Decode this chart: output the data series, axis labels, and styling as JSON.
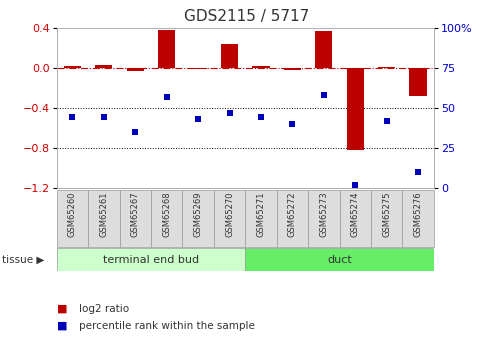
{
  "title": "GDS2115 / 5717",
  "samples": [
    "GSM65260",
    "GSM65261",
    "GSM65267",
    "GSM65268",
    "GSM65269",
    "GSM65270",
    "GSM65271",
    "GSM65272",
    "GSM65273",
    "GSM65274",
    "GSM65275",
    "GSM65276"
  ],
  "log2_ratio": [
    0.02,
    0.03,
    -0.03,
    0.38,
    -0.01,
    0.24,
    0.02,
    -0.02,
    0.37,
    -0.82,
    0.01,
    -0.28
  ],
  "percentile_rank": [
    44,
    44,
    35,
    57,
    43,
    47,
    44,
    40,
    58,
    2,
    42,
    10
  ],
  "tissue_groups": [
    {
      "label": "terminal end bud",
      "start": 0,
      "end": 6,
      "color": "#ccffcc"
    },
    {
      "label": "duct",
      "start": 6,
      "end": 12,
      "color": "#66ee66"
    }
  ],
  "ylim_left": [
    -1.2,
    0.4
  ],
  "ylim_right": [
    0,
    100
  ],
  "yticks_left": [
    0.4,
    0.0,
    -0.4,
    -0.8,
    -1.2
  ],
  "yticks_right": [
    100,
    75,
    50,
    25,
    0
  ],
  "hlines_dotted": [
    -0.4,
    -0.8
  ],
  "bar_color": "#bb0000",
  "dot_color": "#0000bb",
  "ref_line_color": "#cc0000",
  "bg_plot": "#ffffff",
  "tick_color_left": "#cc0000",
  "tick_color_right": "#0000cc",
  "bar_width": 0.55,
  "dot_size": 18,
  "legend_red_label": "log2 ratio",
  "legend_blue_label": "percentile rank within the sample",
  "axis_fontsize": 8,
  "sample_fontsize": 6,
  "tissue_fontsize": 8,
  "title_fontsize": 11
}
